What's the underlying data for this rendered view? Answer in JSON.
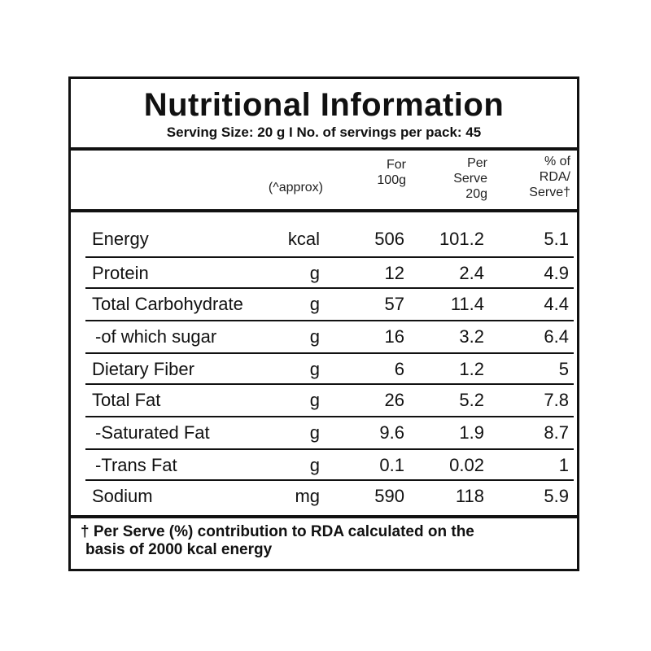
{
  "title": "Nutritional Information",
  "serving_line": "Serving Size: 20 g  I  No. of servings per pack: 45",
  "headers": {
    "approx": "(^approx)",
    "for100_line1": "For",
    "for100_line2": "100g",
    "serve_line1": "Per",
    "serve_line2": "Serve",
    "serve_line3": "20g",
    "rda_line1": "% of",
    "rda_line2": "RDA/",
    "rda_line3": "Serve†"
  },
  "rows": [
    {
      "name": "Energy",
      "unit": "kcal",
      "per100": "506",
      "perServe": "101.2",
      "rda": "5.1"
    },
    {
      "name": "Protein",
      "unit": "g",
      "per100": "12",
      "perServe": "2.4",
      "rda": "4.9"
    },
    {
      "name": "Total Carbohydrate",
      "unit": "g",
      "per100": "57",
      "perServe": "11.4",
      "rda": "4.4"
    },
    {
      "name": " -of which sugar",
      "unit": "g",
      "per100": "16",
      "perServe": "3.2",
      "rda": "6.4"
    },
    {
      "name": "Dietary Fiber",
      "unit": "g",
      "per100": "6",
      "perServe": "1.2",
      "rda": "5"
    },
    {
      "name": "Total Fat",
      "unit": "g",
      "per100": "26",
      "perServe": "5.2",
      "rda": "7.8"
    },
    {
      "name": " -Saturated Fat",
      "unit": "g",
      "per100": "9.6",
      "perServe": "1.9",
      "rda": "8.7"
    },
    {
      "name": " -Trans Fat",
      "unit": "g",
      "per100": "0.1",
      "perServe": "0.02",
      "rda": "1"
    },
    {
      "name": "Sodium",
      "unit": "mg",
      "per100": "590",
      "perServe": "118",
      "rda": "5.9"
    }
  ],
  "footnote_line1": "† Per Serve (%) contribution to RDA calculated on the",
  "footnote_line2": "basis of 2000 kcal energy"
}
